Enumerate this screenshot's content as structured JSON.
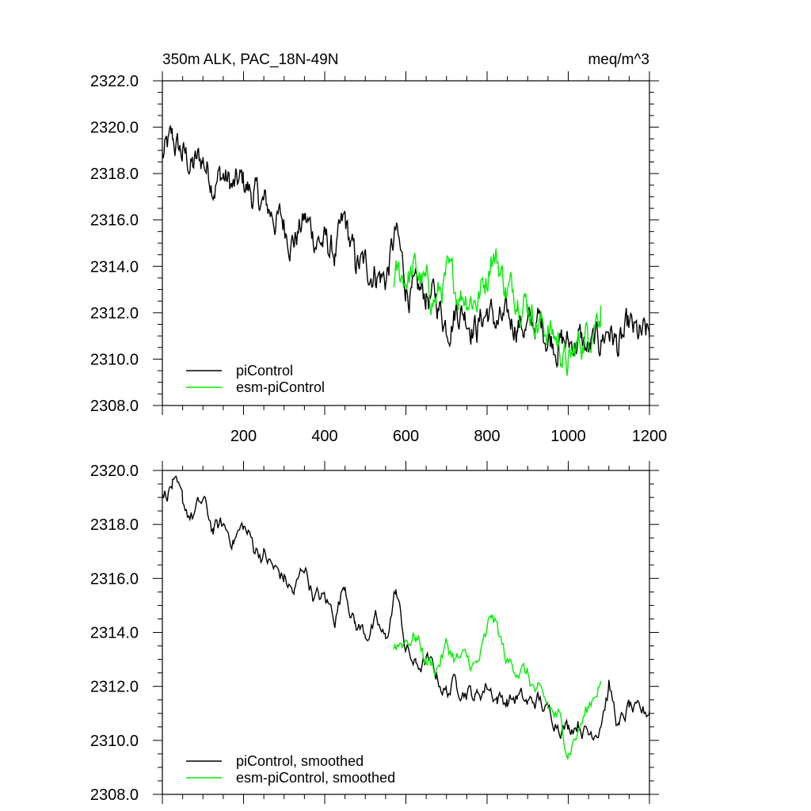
{
  "chart_data": [
    {
      "type": "line",
      "title_left": "350m ALK, PAC_18N-49N",
      "title_right": "meq/m^3",
      "xlim": [
        0,
        1200
      ],
      "ylim": [
        2308,
        2322
      ],
      "x_tick_labels": [
        "200",
        "400",
        "600",
        "800",
        "1000",
        "1200"
      ],
      "y_tick_labels": [
        "2322.0",
        "2320.0",
        "2318.0",
        "2316.0",
        "2314.0",
        "2312.0",
        "2310.0",
        "2308.0"
      ],
      "legend_placement": "bottom-left",
      "series": [
        {
          "name": "piControl",
          "color": "#000000",
          "x": [
            0,
            25,
            50,
            75,
            100,
            125,
            150,
            175,
            200,
            225,
            250,
            275,
            300,
            325,
            350,
            375,
            400,
            425,
            450,
            475,
            500,
            525,
            550,
            575,
            600,
            625,
            650,
            675,
            700,
            725,
            750,
            775,
            800,
            825,
            850,
            875,
            900,
            925,
            950,
            975,
            1000,
            1025,
            1050,
            1075,
            1100,
            1125,
            1150,
            1175,
            1200
          ],
          "y": [
            2318.7,
            2319.3,
            2318.8,
            2318.3,
            2318.6,
            2317.8,
            2317.9,
            2317.3,
            2317.6,
            2317.0,
            2316.6,
            2316.2,
            2315.8,
            2315.2,
            2316.0,
            2315.3,
            2315.0,
            2314.5,
            2315.8,
            2314.1,
            2313.9,
            2313.9,
            2313.4,
            2315.4,
            2313.2,
            2312.6,
            2312.8,
            2312.5,
            2311.6,
            2312.3,
            2312.0,
            2311.4,
            2312.1,
            2311.5,
            2311.5,
            2311.7,
            2311.3,
            2311.6,
            2311.1,
            2310.8,
            2310.6,
            2310.9,
            2310.3,
            2310.7,
            2311.4,
            2310.4,
            2311.2,
            2310.8,
            2310.9
          ]
        },
        {
          "name": "esm-piControl",
          "color": "#00ee00",
          "x": [
            570,
            600,
            625,
            650,
            675,
            700,
            725,
            750,
            775,
            800,
            810,
            825,
            850,
            875,
            900,
            925,
            950,
            975,
            1000,
            1025,
            1050,
            1075,
            1080
          ],
          "y": [
            2313.5,
            2313.6,
            2313.8,
            2313.0,
            2312.6,
            2313.4,
            2313.0,
            2312.9,
            2312.6,
            2313.6,
            2314.8,
            2314.3,
            2312.9,
            2313.0,
            2312.5,
            2311.6,
            2311.3,
            2310.8,
            2309.6,
            2310.6,
            2311.2,
            2312.2,
            2312.3
          ]
        }
      ]
    },
    {
      "type": "line",
      "xlim": [
        0,
        1200
      ],
      "ylim": [
        2308,
        2320
      ],
      "y_tick_labels": [
        "2320.0",
        "2318.0",
        "2316.0",
        "2314.0",
        "2312.0",
        "2310.0",
        "2308.0"
      ],
      "legend_placement": "bottom-left",
      "series": [
        {
          "name": "piControl, smoothed",
          "color": "#000000",
          "x": [
            0,
            25,
            50,
            75,
            100,
            125,
            150,
            175,
            200,
            225,
            250,
            275,
            300,
            325,
            350,
            375,
            400,
            425,
            450,
            475,
            500,
            525,
            550,
            575,
            600,
            625,
            650,
            675,
            700,
            725,
            750,
            775,
            800,
            825,
            850,
            875,
            900,
            925,
            950,
            975,
            1000,
            1025,
            1050,
            1075,
            1100,
            1125,
            1150,
            1175,
            1200
          ],
          "y": [
            2318.9,
            2319.5,
            2318.6,
            2318.3,
            2318.8,
            2317.8,
            2317.9,
            2317.5,
            2317.9,
            2317.2,
            2316.9,
            2316.3,
            2316.0,
            2315.4,
            2316.5,
            2315.3,
            2315.2,
            2314.6,
            2315.9,
            2314.3,
            2314.0,
            2314.3,
            2313.6,
            2315.6,
            2313.4,
            2312.7,
            2312.9,
            2312.4,
            2311.8,
            2312.2,
            2311.9,
            2311.6,
            2312.1,
            2311.6,
            2311.5,
            2311.6,
            2311.3,
            2311.5,
            2311.0,
            2310.8,
            2310.5,
            2310.8,
            2310.2,
            2310.6,
            2312.0,
            2310.4,
            2311.2,
            2310.8,
            2311.1
          ]
        },
        {
          "name": "esm-piControl, smoothed",
          "color": "#00ee00",
          "x": [
            570,
            600,
            625,
            650,
            675,
            700,
            725,
            750,
            775,
            800,
            810,
            825,
            850,
            875,
            900,
            925,
            950,
            975,
            1000,
            1025,
            1050,
            1075,
            1080
          ],
          "y": [
            2313.5,
            2313.8,
            2313.9,
            2313.0,
            2312.7,
            2313.5,
            2313.0,
            2312.9,
            2312.7,
            2313.8,
            2314.6,
            2314.1,
            2312.8,
            2312.8,
            2312.4,
            2311.6,
            2311.2,
            2310.8,
            2309.7,
            2310.4,
            2311.2,
            2312.2,
            2312.2
          ]
        }
      ]
    }
  ]
}
